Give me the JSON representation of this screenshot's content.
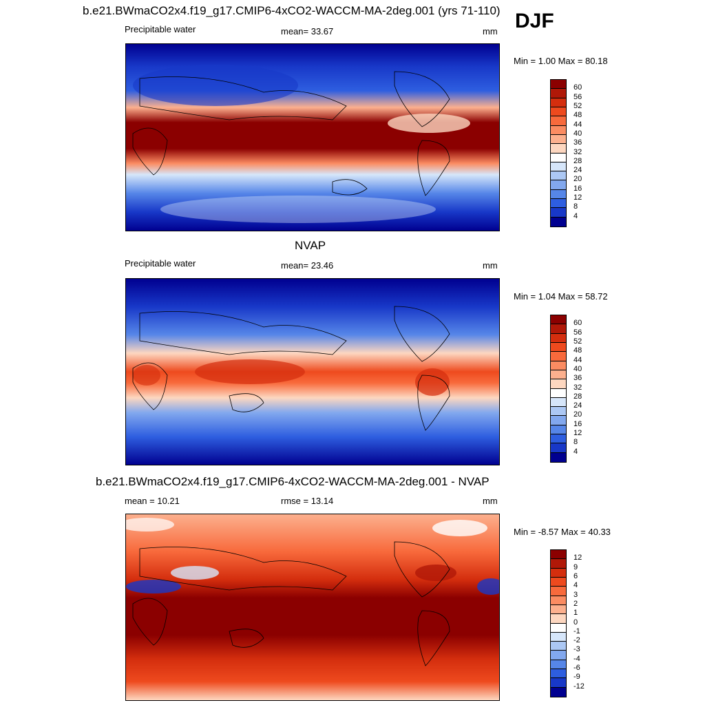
{
  "header": {
    "title": "b.e21.BWmaCO2x4.f19_g17.CMIP6-4xCO2-WACCM-MA-2deg.001 (yrs 71-110)",
    "season": "DJF"
  },
  "panels": [
    {
      "id": "model",
      "title": "",
      "left_label": "Precipitable water",
      "center_label": "mean=  33.67",
      "units": "mm",
      "minmax": "Min =   1.00 Max =  80.18",
      "levels": [
        "60",
        "56",
        "52",
        "48",
        "44",
        "40",
        "36",
        "32",
        "28",
        "24",
        "20",
        "16",
        "12",
        "8",
        "4"
      ],
      "colors": [
        "#8b0000",
        "#b01808",
        "#d42e0e",
        "#ee4a1e",
        "#f86a3c",
        "#fb8c62",
        "#fcb08e",
        "#fdd7c0",
        "#ffffff",
        "#d6e6fa",
        "#acc8f4",
        "#82a8ee",
        "#5686e8",
        "#2e5ee0",
        "#1838c8",
        "#000090"
      ]
    },
    {
      "id": "obs",
      "title": "NVAP",
      "left_label": "Precipitable water",
      "center_label": "mean=  23.46",
      "units": "mm",
      "minmax": "Min =   1.04 Max =  58.72",
      "levels": [
        "60",
        "56",
        "52",
        "48",
        "44",
        "40",
        "36",
        "32",
        "28",
        "24",
        "20",
        "16",
        "12",
        "8",
        "4"
      ],
      "colors": [
        "#8b0000",
        "#b01808",
        "#d42e0e",
        "#ee4a1e",
        "#f86a3c",
        "#fb8c62",
        "#fcb08e",
        "#fdd7c0",
        "#ffffff",
        "#d6e6fa",
        "#acc8f4",
        "#82a8ee",
        "#5686e8",
        "#2e5ee0",
        "#1838c8",
        "#000090"
      ]
    },
    {
      "id": "diff",
      "title": "b.e21.BWmaCO2x4.f19_g17.CMIP6-4xCO2-WACCM-MA-2deg.001 - NVAP",
      "left_label": "mean =  10.21",
      "center_label": "rmse =  13.14",
      "units": "mm",
      "minmax": "Min =  -8.57 Max =  40.33",
      "levels": [
        "12",
        "9",
        "6",
        "4",
        "3",
        "2",
        "1",
        "0",
        "-1",
        "-2",
        "-3",
        "-4",
        "-6",
        "-9",
        "-12"
      ],
      "colors": [
        "#8b0000",
        "#b01808",
        "#d42e0e",
        "#ee4a1e",
        "#f86a3c",
        "#fb8c62",
        "#fcb08e",
        "#fdd7c0",
        "#ffffff",
        "#d6e6fa",
        "#acc8f4",
        "#82a8ee",
        "#5686e8",
        "#2e5ee0",
        "#1838c8",
        "#000090"
      ]
    }
  ]
}
